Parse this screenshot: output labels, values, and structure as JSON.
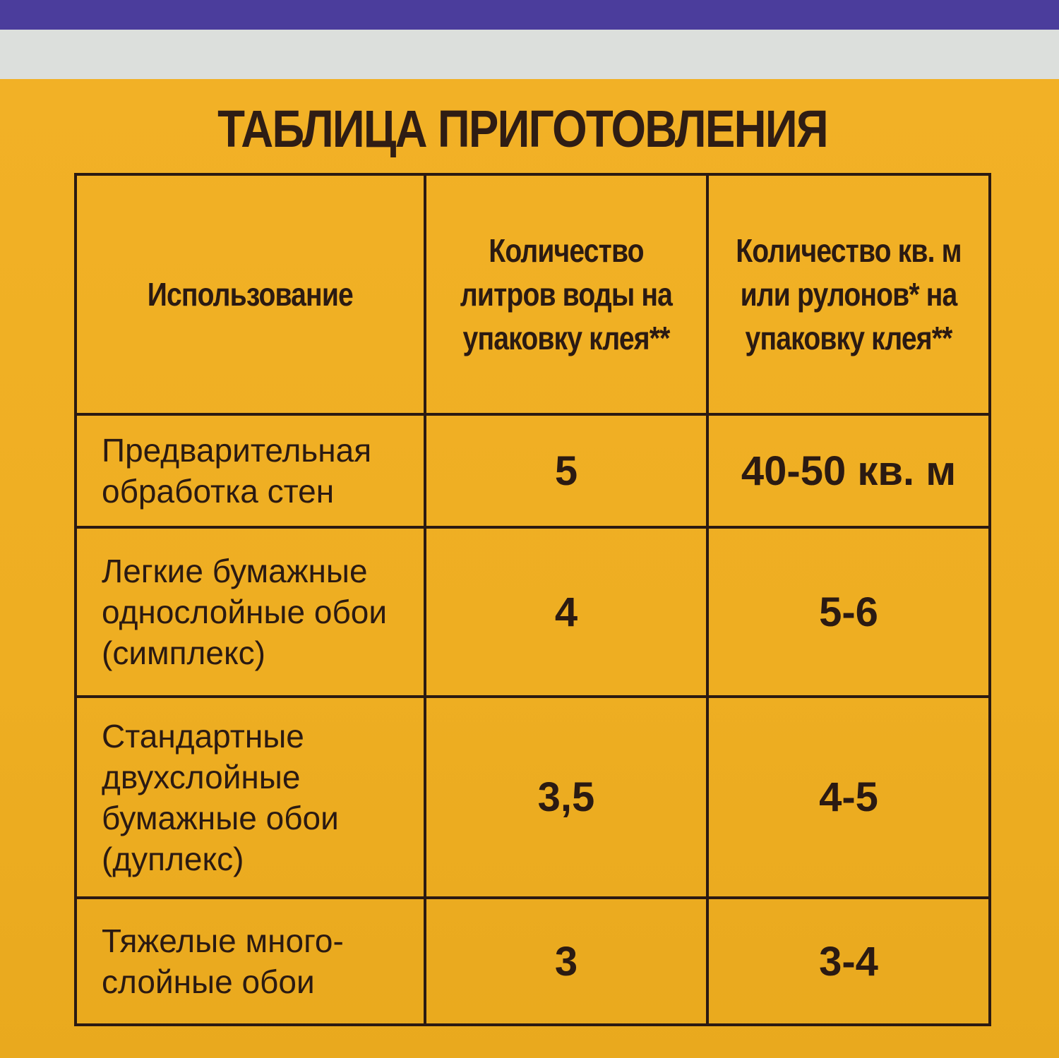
{
  "colors": {
    "top_band": "#4b3d9c",
    "strip": "#dcdfdc",
    "background": "#f0b224",
    "text": "#2b1a12"
  },
  "title": "ТАБЛИЦА ПРИГОТОВЛЕНИЯ",
  "table": {
    "headers": [
      "Использование",
      "Количество литров воды на упаковку клея**",
      "Количество кв. м или рулонов* на упаковку клея**"
    ],
    "rows": [
      {
        "usage": "Предварительная обработка стен",
        "water": "5",
        "coverage": "40-50 кв. м"
      },
      {
        "usage": "Легкие бумажные однослойные обои (симплекс)",
        "water": "4",
        "coverage": "5-6"
      },
      {
        "usage": "Стандартные двухслойные бумажные обои (дуплекс)",
        "water": "3,5",
        "coverage": "4-5"
      },
      {
        "usage": "Тяжелые много-слойные обои",
        "water": "3",
        "coverage": "3-4"
      }
    ]
  }
}
